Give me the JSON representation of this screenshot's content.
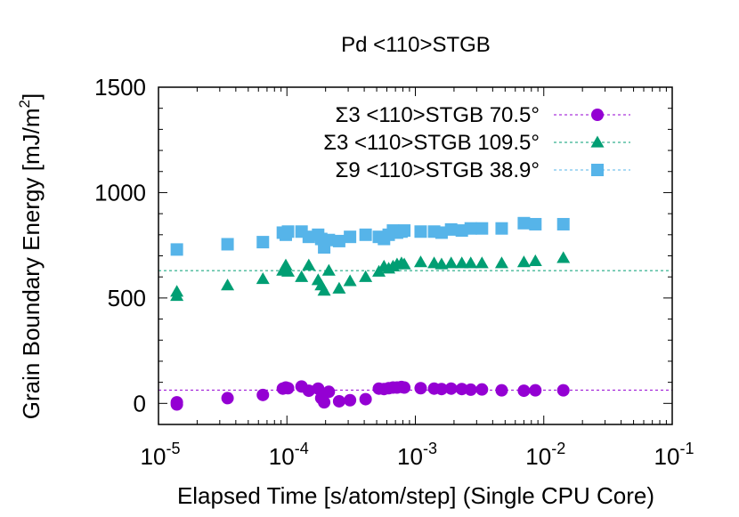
{
  "chart_data": {
    "type": "scatter",
    "title": "Pd <110>STGB",
    "xlabel": "Elapsed Time [s/atom/step] (Single CPU Core)",
    "ylabel_main": "Grain Boundary Energy [mJ/m",
    "ylabel_sup": "2",
    "ylabel_close": "]",
    "x_scale": "log",
    "xlim": [
      1e-05,
      0.1
    ],
    "ylim": [
      -100,
      1500
    ],
    "x_ticks": [
      {
        "value": 1e-05,
        "base": "10",
        "exp": "-5"
      },
      {
        "value": 0.0001,
        "base": "10",
        "exp": "-4"
      },
      {
        "value": 0.001,
        "base": "10",
        "exp": "-3"
      },
      {
        "value": 0.01,
        "base": "10",
        "exp": "-2"
      },
      {
        "value": 0.1,
        "base": "10",
        "exp": "-1"
      }
    ],
    "y_ticks": [
      {
        "value": 0,
        "label": "0"
      },
      {
        "value": 500,
        "label": "500"
      },
      {
        "value": 1000,
        "label": "1000"
      },
      {
        "value": 1500,
        "label": "1500"
      }
    ],
    "grid": false,
    "legend_position": "top-right",
    "series": [
      {
        "name": "Σ3 <110>STGB 70.5°",
        "marker": "circle",
        "color": "#9400d3",
        "reference_line": 63,
        "points": [
          [
            1.39e-05,
            5
          ],
          [
            1.39e-05,
            -5
          ],
          [
            3.45e-05,
            25
          ],
          [
            6.5e-05,
            40
          ],
          [
            9.3e-05,
            70
          ],
          [
            9.8e-05,
            75
          ],
          [
            0.000102,
            72
          ],
          [
            0.00013,
            80
          ],
          [
            0.000148,
            60
          ],
          [
            0.000175,
            70
          ],
          [
            0.000185,
            25
          ],
          [
            0.000195,
            5
          ],
          [
            0.000212,
            55
          ],
          [
            0.000255,
            10
          ],
          [
            0.00031,
            15
          ],
          [
            0.00041,
            20
          ],
          [
            0.00052,
            70
          ],
          [
            0.00057,
            68
          ],
          [
            0.00062,
            72
          ],
          [
            0.00067,
            75
          ],
          [
            0.00072,
            75
          ],
          [
            0.00078,
            78
          ],
          [
            0.00082,
            75
          ],
          [
            0.0011,
            72
          ],
          [
            0.0014,
            70
          ],
          [
            0.0016,
            68
          ],
          [
            0.0019,
            70
          ],
          [
            0.0023,
            68
          ],
          [
            0.0027,
            65
          ],
          [
            0.0033,
            66
          ],
          [
            0.0047,
            62
          ],
          [
            0.007,
            60
          ],
          [
            0.0086,
            62
          ],
          [
            0.0142,
            62
          ]
        ]
      },
      {
        "name": "Σ3 <110>STGB 109.5°",
        "marker": "triangle",
        "color": "#009e73",
        "reference_line": 630,
        "points": [
          [
            1.39e-05,
            530
          ],
          [
            1.39e-05,
            510
          ],
          [
            3.45e-05,
            560
          ],
          [
            6.5e-05,
            590
          ],
          [
            9.3e-05,
            630
          ],
          [
            9.8e-05,
            655
          ],
          [
            0.000102,
            625
          ],
          [
            0.00013,
            600
          ],
          [
            0.000148,
            655
          ],
          [
            0.000175,
            585
          ],
          [
            0.000185,
            560
          ],
          [
            0.000195,
            535
          ],
          [
            0.000212,
            630
          ],
          [
            0.000255,
            545
          ],
          [
            0.00031,
            580
          ],
          [
            0.00041,
            600
          ],
          [
            0.00052,
            625
          ],
          [
            0.00057,
            650
          ],
          [
            0.00062,
            640
          ],
          [
            0.00067,
            650
          ],
          [
            0.00072,
            660
          ],
          [
            0.00078,
            665
          ],
          [
            0.00082,
            660
          ],
          [
            0.0011,
            670
          ],
          [
            0.0014,
            665
          ],
          [
            0.0016,
            660
          ],
          [
            0.0019,
            665
          ],
          [
            0.0023,
            665
          ],
          [
            0.0027,
            665
          ],
          [
            0.0033,
            665
          ],
          [
            0.0047,
            665
          ],
          [
            0.007,
            670
          ],
          [
            0.0086,
            675
          ],
          [
            0.0142,
            690
          ]
        ]
      },
      {
        "name": "Σ9 <110>STGB 38.9°",
        "marker": "square",
        "color": "#56b4e9",
        "reference_line": null,
        "points": [
          [
            1.39e-05,
            730
          ],
          [
            3.45e-05,
            755
          ],
          [
            6.5e-05,
            765
          ],
          [
            9.3e-05,
            810
          ],
          [
            9.8e-05,
            800
          ],
          [
            0.000102,
            815
          ],
          [
            0.00013,
            815
          ],
          [
            0.000148,
            790
          ],
          [
            0.000175,
            800
          ],
          [
            0.000185,
            780
          ],
          [
            0.000195,
            740
          ],
          [
            0.000212,
            775
          ],
          [
            0.000255,
            770
          ],
          [
            0.00031,
            790
          ],
          [
            0.00041,
            800
          ],
          [
            0.00052,
            790
          ],
          [
            0.00057,
            780
          ],
          [
            0.00062,
            800
          ],
          [
            0.00067,
            820
          ],
          [
            0.00072,
            810
          ],
          [
            0.00078,
            815
          ],
          [
            0.00082,
            820
          ],
          [
            0.0011,
            815
          ],
          [
            0.0014,
            815
          ],
          [
            0.0016,
            810
          ],
          [
            0.0019,
            825
          ],
          [
            0.0023,
            820
          ],
          [
            0.0027,
            830
          ],
          [
            0.0033,
            830
          ],
          [
            0.0047,
            830
          ],
          [
            0.007,
            855
          ],
          [
            0.0086,
            850
          ],
          [
            0.0142,
            850
          ]
        ]
      }
    ]
  }
}
